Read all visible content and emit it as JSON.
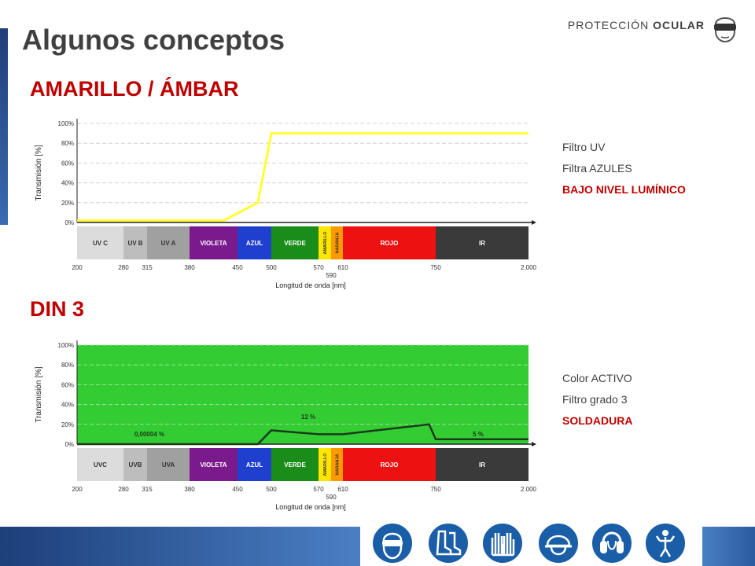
{
  "header": {
    "title": "Algunos conceptos",
    "label_light": "PROTECCIÓN",
    "label_bold": "OCULAR"
  },
  "sections": [
    {
      "title": "AMARILLO / ÁMBAR",
      "notes": [
        "Filtro UV",
        "Filtra AZULES"
      ],
      "highlight": "BAJO NIVEL LUMÍNICO"
    },
    {
      "title": "DIN 3",
      "notes": [
        "Color ACTIVO",
        "Filtro grado 3"
      ],
      "highlight": "SOLDADURA"
    }
  ],
  "colors": {
    "accent_red": "#c00000",
    "yellow_line": "#ffff33",
    "green_fill": "#33cc33",
    "brand_blue": "#1a5ea8"
  },
  "footer_icons": [
    "goggles-icon",
    "boots-icon",
    "gloves-icon",
    "helmet-icon",
    "ear-protection-icon",
    "harness-icon"
  ],
  "chart_data": [
    {
      "type": "line",
      "ylabel": "Transmisión [%]",
      "xlabel": "Longitud de onda [nm]",
      "yticks": [
        "100%",
        "80%",
        "60%",
        "40%",
        "20%",
        "0%"
      ],
      "ylim": [
        0,
        100
      ],
      "x": [
        200,
        430,
        480,
        500,
        2000
      ],
      "y": [
        2,
        2,
        20,
        90,
        90
      ],
      "line_color": "#ffff33",
      "fill": false,
      "grid": true,
      "annotations": [],
      "bands": [
        {
          "label": "UV C",
          "color": "#dcdcdc",
          "text": "#333333"
        },
        {
          "label": "UV B",
          "color": "#bdbdbd",
          "text": "#333333"
        },
        {
          "label": "UV A",
          "color": "#a0a0a0",
          "text": "#333333"
        },
        {
          "label": "VIOLETA",
          "color": "#7b1a8c",
          "text": "#ffffff"
        },
        {
          "label": "AZUL",
          "color": "#1f3fcf",
          "text": "#ffffff"
        },
        {
          "label": "VERDE",
          "color": "#1a8c1a",
          "text": "#ffffff"
        },
        {
          "label": "AMARILLO",
          "color": "#ffe600",
          "text": "#333333",
          "vertical": true
        },
        {
          "label": "NARANJA",
          "color": "#ff9900",
          "text": "#333333",
          "vertical": true
        },
        {
          "label": "ROJO",
          "color": "#ee1111",
          "text": "#ffffff"
        },
        {
          "label": "IR",
          "color": "#3a3a3a",
          "text": "#ffffff"
        }
      ],
      "xticks": [
        "200",
        "280",
        "315",
        "380",
        "450",
        "500",
        "570",
        "610",
        "750",
        "2.000"
      ],
      "xtick_sub": "590"
    },
    {
      "type": "line",
      "ylabel": "Transmisión [%]",
      "xlabel": "Longitud de onda [nm]",
      "yticks": [
        "100%",
        "80%",
        "60%",
        "40%",
        "20%",
        "0%"
      ],
      "ylim": [
        0,
        100
      ],
      "x": [
        200,
        480,
        500,
        570,
        610,
        740,
        750,
        2000
      ],
      "y": [
        4e-05,
        4e-05,
        14,
        10,
        10,
        20,
        5,
        5
      ],
      "line_color": "#1a3a1a",
      "fill": true,
      "grid": true,
      "annotations": [
        "0,00004 %",
        "12 %",
        "5 %"
      ],
      "bands": [
        {
          "label": "UVC",
          "color": "#dcdcdc",
          "text": "#333333"
        },
        {
          "label": "UVB",
          "color": "#bdbdbd",
          "text": "#333333"
        },
        {
          "label": "UVA",
          "color": "#a0a0a0",
          "text": "#333333"
        },
        {
          "label": "VIOLETA",
          "color": "#7b1a8c",
          "text": "#ffffff"
        },
        {
          "label": "AZUL",
          "color": "#1f3fcf",
          "text": "#ffffff"
        },
        {
          "label": "VERDE",
          "color": "#1a8c1a",
          "text": "#ffffff"
        },
        {
          "label": "AMARILLO",
          "color": "#ffe600",
          "text": "#333333",
          "vertical": true
        },
        {
          "label": "NARANJA",
          "color": "#ff9900",
          "text": "#333333",
          "vertical": true
        },
        {
          "label": "ROJO",
          "color": "#ee1111",
          "text": "#ffffff"
        },
        {
          "label": "IR",
          "color": "#3a3a3a",
          "text": "#ffffff"
        }
      ],
      "xticks": [
        "200",
        "280",
        "315",
        "380",
        "450",
        "500",
        "570",
        "610",
        "750",
        "2.000"
      ],
      "xtick_sub": "590"
    }
  ]
}
